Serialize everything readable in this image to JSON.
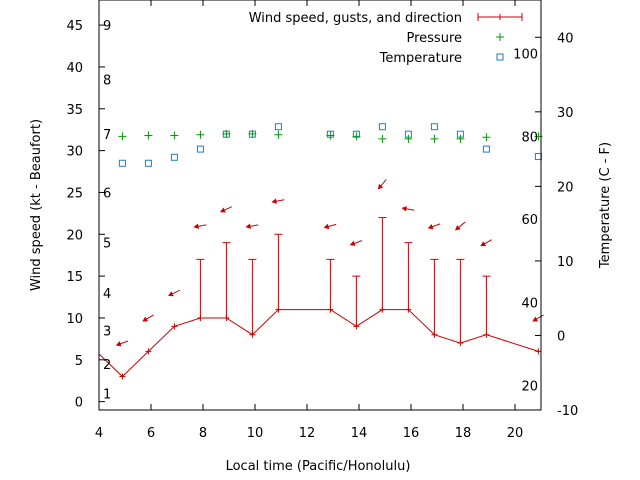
{
  "chart_data": {
    "type": "line",
    "xlabel": "Local time (Pacific/Honolulu)",
    "ylabel": "Wind speed (kt - Beaufort)",
    "y2label": "Temperature (C - F)",
    "xlim": [
      4,
      21
    ],
    "ylim": [
      -1,
      48
    ],
    "y2lim": [
      -10,
      45
    ],
    "x_ticks": [
      4,
      6,
      8,
      10,
      12,
      14,
      16,
      18,
      20
    ],
    "y_ticks": [
      0,
      5,
      10,
      15,
      20,
      25,
      30,
      35,
      40,
      45
    ],
    "y2_ticks": [
      -10,
      0,
      10,
      20,
      30,
      40
    ],
    "beaufort_labels": [
      {
        "label": "1",
        "y": 1
      },
      {
        "label": "2",
        "y": 4.5
      },
      {
        "label": "3",
        "y": 8.5
      },
      {
        "label": "4",
        "y": 13
      },
      {
        "label": "5",
        "y": 19
      },
      {
        "label": "6",
        "y": 25
      },
      {
        "label": "7",
        "y": 32
      },
      {
        "label": "8",
        "y": 38.5
      },
      {
        "label": "9",
        "y": 45
      }
    ],
    "fahrenheit_labels": [
      {
        "label": "20",
        "y2": -6.7
      },
      {
        "label": "40",
        "y2": 4.4
      },
      {
        "label": "60",
        "y2": 15.6
      },
      {
        "label": "80",
        "y2": 26.7
      },
      {
        "label": "100",
        "y2": 37.8
      }
    ],
    "legend": {
      "position": "top-right",
      "entries": [
        {
          "label": "Wind speed, gusts, and direction",
          "color": "#cc0000",
          "marker": "errorbar"
        },
        {
          "label": "Pressure",
          "color": "#009900",
          "marker": "plus"
        },
        {
          "label": "Temperature",
          "color": "#1a7fcc",
          "marker": "square"
        }
      ]
    },
    "series": [
      {
        "name": "Wind speed, gusts, and direction",
        "color": "#cc0000",
        "x": [
          3.9,
          4.9,
          5.9,
          6.9,
          7.9,
          8.9,
          9.9,
          10.9,
          12.9,
          13.9,
          14.9,
          15.9,
          16.9,
          17.9,
          18.9,
          20.9
        ],
        "y": [
          6,
          3,
          6,
          9,
          10,
          10,
          8,
          11,
          11,
          9,
          11,
          11,
          8,
          7,
          8,
          6
        ],
        "gust": [
          null,
          3,
          6,
          9,
          17,
          19,
          17,
          20,
          17,
          15,
          22,
          19,
          17,
          17,
          15,
          6
        ],
        "arrow_y": [
          null,
          7,
          10,
          13,
          21,
          23,
          21,
          24,
          21,
          19,
          26,
          23,
          21,
          21,
          19,
          10
        ],
        "dir_deg": [
          null,
          70,
          60,
          65,
          80,
          65,
          80,
          80,
          75,
          70,
          40,
          100,
          70,
          50,
          60,
          60
        ]
      },
      {
        "name": "Pressure",
        "color": "#009900",
        "x": [
          4.9,
          5.9,
          6.9,
          7.9,
          8.9,
          9.9,
          10.9,
          12.9,
          13.9,
          14.9,
          15.9,
          16.9,
          17.9,
          18.9,
          20.9
        ],
        "y": [
          31.7,
          31.8,
          31.8,
          31.9,
          32.0,
          32.0,
          31.9,
          31.8,
          31.7,
          31.4,
          31.4,
          31.4,
          31.4,
          31.6,
          31.7
        ]
      },
      {
        "name": "Temperature",
        "color": "#1a7fcc",
        "axis": "y2",
        "x": [
          4.9,
          5.9,
          6.9,
          7.9,
          8.9,
          9.9,
          10.9,
          12.9,
          13.9,
          14.9,
          15.9,
          16.9,
          17.9,
          18.9,
          20.9
        ],
        "y": [
          23.1,
          23.1,
          23.9,
          25.0,
          27.0,
          27.0,
          28.0,
          27.0,
          27.0,
          28.0,
          27.0,
          28.0,
          27.0,
          25.0,
          24.0
        ]
      }
    ]
  }
}
